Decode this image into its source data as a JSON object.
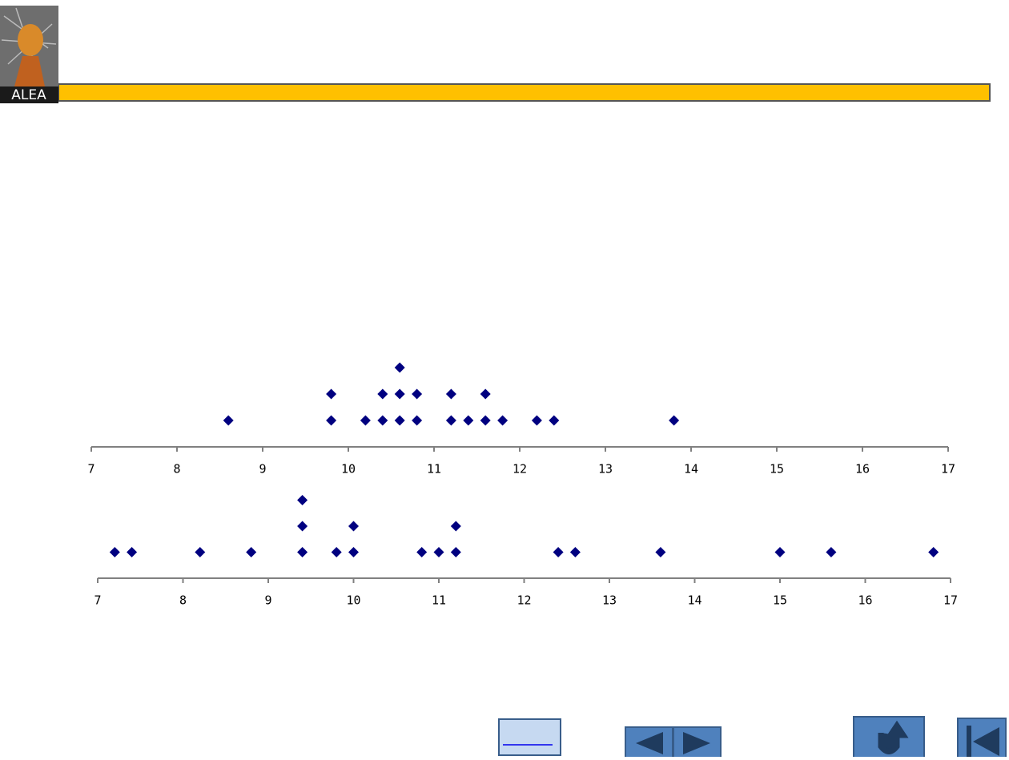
{
  "logo": "ALEA",
  "chart_data": [
    {
      "type": "dotplot",
      "color": "#000080",
      "values": [
        8.6,
        9.8,
        9.8,
        10.2,
        10.4,
        10.4,
        10.6,
        10.6,
        10.6,
        10.8,
        10.8,
        11.2,
        11.2,
        11.4,
        11.6,
        11.6,
        11.8,
        12.2,
        12.4,
        13.8
      ],
      "xlim": [
        7,
        17
      ],
      "xticks": [
        7,
        8,
        9,
        10,
        11,
        12,
        13,
        14,
        15,
        16,
        17
      ]
    },
    {
      "type": "dotplot",
      "color": "#000080",
      "values": [
        7.2,
        7.4,
        8.2,
        8.8,
        9.4,
        9.4,
        9.4,
        9.8,
        10.0,
        10.0,
        10.8,
        11.0,
        11.2,
        11.2,
        12.4,
        12.6,
        13.6,
        15.0,
        15.6,
        16.8
      ],
      "xlim": [
        7,
        17
      ],
      "xticks": [
        7,
        8,
        9,
        10,
        11,
        12,
        13,
        14,
        15,
        16,
        17
      ]
    }
  ]
}
